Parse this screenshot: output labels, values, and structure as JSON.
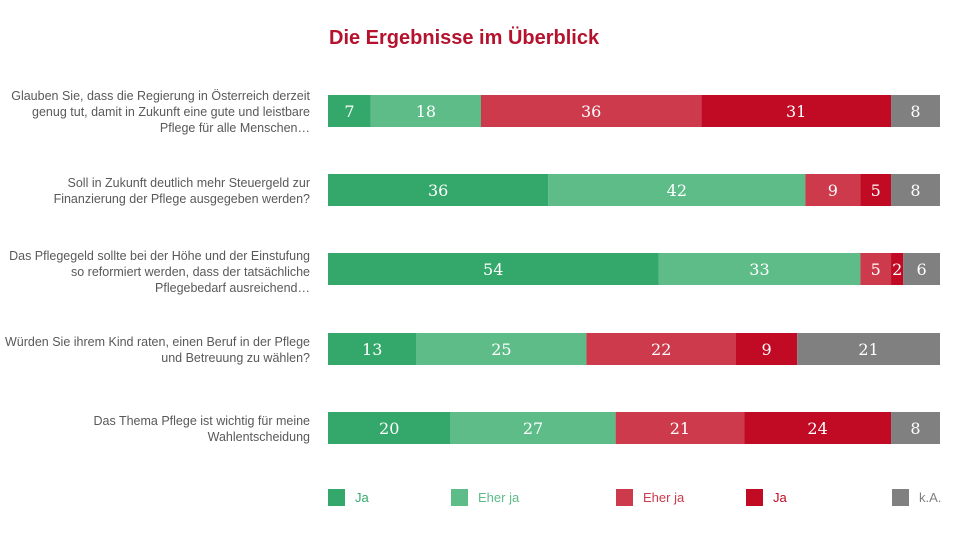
{
  "title": "Die Ergebnisse im Überblick",
  "colors": {
    "ja_green": "#34a86a",
    "eher_ja_green": "#5dbc88",
    "eher_ja_red": "#cc3a4c",
    "ja_red": "#c10a24",
    "ka_gray": "#808080",
    "title": "#b5122e",
    "question_text": "#595959"
  },
  "chart_data": {
    "type": "bar",
    "orientation": "horizontal",
    "stacked": true,
    "title": "Die Ergebnisse im Überblick",
    "categories": [
      "Glauben Sie, dass die Regierung in Österreich derzeit genug tut, damit in Zukunft eine gute und leistbare Pflege für alle Menschen…",
      "Soll in Zukunft deutlich mehr Steuergeld zur Finanzierung der Pflege ausgegeben werden?",
      "Das Pflegegeld sollte bei der Höhe und der Einstufung so reformiert werden, dass der tatsächliche Pflegebedarf ausreichend…",
      "Würden Sie ihrem Kind raten, einen Beruf in der Pflege und Betreuung zu wählen?",
      "Das Thema Pflege ist wichtig für meine Wahlentscheidung"
    ],
    "series": [
      {
        "name": "Ja",
        "color": "#34a86a",
        "values": [
          7,
          36,
          54,
          13,
          20
        ]
      },
      {
        "name": "Eher ja",
        "color": "#5dbc88",
        "values": [
          18,
          42,
          33,
          25,
          27
        ]
      },
      {
        "name": "Eher ja",
        "color": "#cc3a4c",
        "values": [
          36,
          9,
          5,
          22,
          21
        ]
      },
      {
        "name": "Ja",
        "color": "#c10a24",
        "values": [
          31,
          5,
          2,
          9,
          24
        ]
      },
      {
        "name": "k.A.",
        "color": "#808080",
        "values": [
          8,
          8,
          6,
          21,
          8
        ]
      }
    ],
    "legend_position": "bottom",
    "grid": false
  }
}
